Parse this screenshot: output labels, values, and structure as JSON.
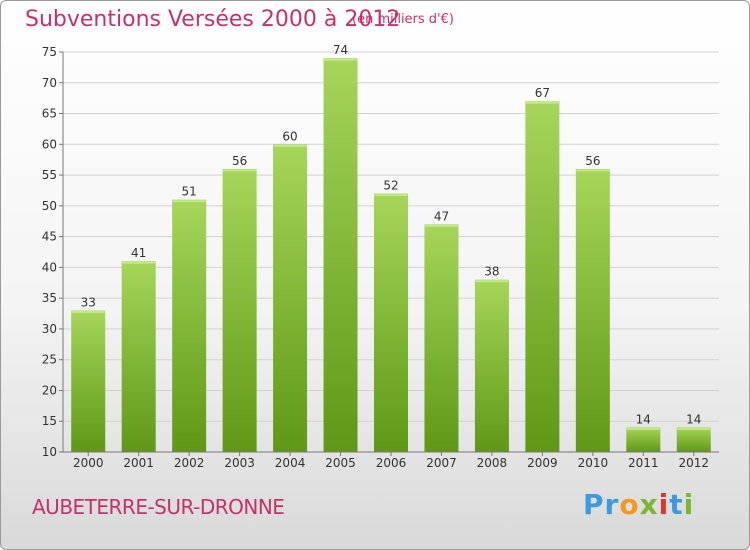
{
  "header": {
    "title": "Subventions Versées 2000 à 2012",
    "subtitle": "(en milliers d'€)"
  },
  "footer": {
    "commune": "AUBETERRE-SUR-DRONNE",
    "brand": [
      "Pr",
      "o",
      "x",
      "i",
      "t",
      "i"
    ]
  },
  "colors": {
    "title": "#c8306a",
    "bar_light": "#9fd04e",
    "bar_dark": "#5f9a17",
    "grid": "#cfcfcf"
  },
  "chart_data": {
    "type": "bar",
    "categories": [
      "2000",
      "2001",
      "2002",
      "2003",
      "2004",
      "2005",
      "2006",
      "2007",
      "2008",
      "2009",
      "2010",
      "2011",
      "2012"
    ],
    "values": [
      33,
      41,
      51,
      56,
      60,
      74,
      52,
      47,
      38,
      67,
      56,
      14,
      14
    ],
    "ylim": [
      10,
      75
    ],
    "yticks": [
      10,
      15,
      20,
      25,
      30,
      35,
      40,
      45,
      50,
      55,
      60,
      65,
      70,
      75
    ],
    "grid": true,
    "data_labels": true
  }
}
